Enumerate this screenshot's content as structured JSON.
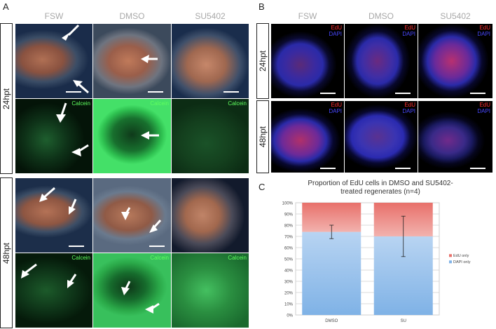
{
  "figure": {
    "panel_a_letter": "A",
    "panel_b_letter": "B",
    "panel_c_letter": "C",
    "panel_a_columns": [
      "FSW",
      "DMSO",
      "SU5402"
    ],
    "panel_b_columns": [
      "FSW",
      "DMSO",
      "SU5402"
    ],
    "row_labels": [
      "24hpt",
      "48hpt"
    ],
    "calcein_label": "Calcein",
    "edu_label": "EdU",
    "dapi_label": "DAPI"
  },
  "colors": {
    "edu_series": "#e8706a",
    "dapi_series": "#7fb2e6",
    "calcein_text": "#5fff5f"
  },
  "chart_data": {
    "type": "bar",
    "stacked": true,
    "title": "Proportion of EdU cells in DMSO and SU5402-treated regenerates (n=4)",
    "title_lines": [
      "Proportion of EdU cells in DMSO and SU5402-",
      "treated regenerates (n=4)"
    ],
    "categories": [
      "DMSO",
      "SU"
    ],
    "series": [
      {
        "name": "DAPI only",
        "values": [
          74,
          70
        ],
        "error": [
          6,
          18
        ]
      },
      {
        "name": "EdU only",
        "values": [
          26,
          30
        ]
      }
    ],
    "legend_order": [
      "EdU only",
      "DAPI only"
    ],
    "legend_position": "right",
    "ylim": [
      0,
      100
    ],
    "yticks": [
      "0%",
      "10%",
      "20%",
      "30%",
      "40%",
      "50%",
      "60%",
      "70%",
      "80%",
      "90%",
      "100%"
    ],
    "grid": true,
    "xlabel": "",
    "ylabel": ""
  }
}
